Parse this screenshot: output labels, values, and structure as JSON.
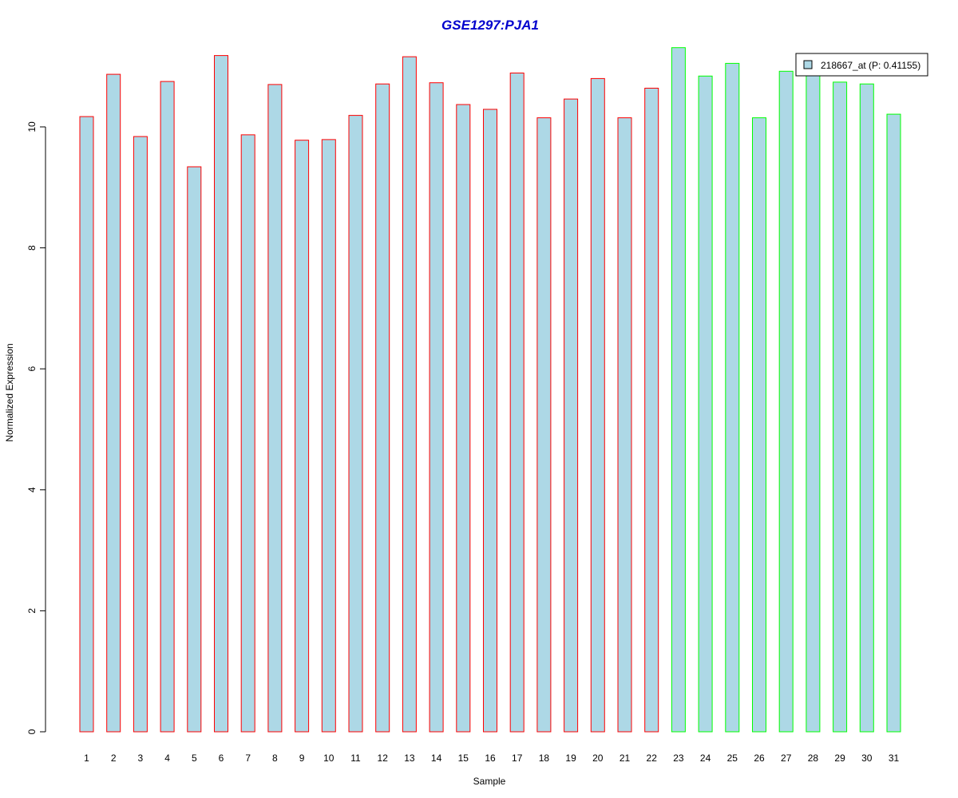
{
  "chart_data": {
    "type": "bar",
    "title": "GSE1297:PJA1",
    "xlabel": "Sample",
    "ylabel": "Normalized Expression",
    "categories": [
      "1",
      "2",
      "3",
      "4",
      "5",
      "6",
      "7",
      "8",
      "9",
      "10",
      "11",
      "12",
      "13",
      "14",
      "15",
      "16",
      "17",
      "18",
      "19",
      "20",
      "21",
      "22",
      "23",
      "24",
      "25",
      "26",
      "27",
      "28",
      "29",
      "30",
      "31"
    ],
    "values": [
      10.17,
      10.87,
      9.84,
      10.75,
      9.34,
      11.18,
      9.87,
      10.7,
      9.78,
      9.79,
      10.19,
      10.71,
      11.16,
      10.73,
      10.37,
      10.29,
      10.89,
      10.15,
      10.46,
      10.8,
      10.15,
      10.64,
      11.31,
      10.84,
      11.05,
      10.15,
      10.92,
      10.86,
      10.74,
      10.71,
      10.21
    ],
    "groups": [
      "red",
      "red",
      "red",
      "red",
      "red",
      "red",
      "red",
      "red",
      "red",
      "red",
      "red",
      "red",
      "red",
      "red",
      "red",
      "red",
      "red",
      "red",
      "red",
      "red",
      "red",
      "red",
      "green",
      "green",
      "green",
      "green",
      "green",
      "green",
      "green",
      "green",
      "green"
    ],
    "ylim": [
      0,
      11.3
    ],
    "yticks": [
      "0",
      "2",
      "4",
      "6",
      "8",
      "10"
    ],
    "legend": {
      "label": "218667_at (P: 0.41155)",
      "position": "top-right"
    },
    "colors": {
      "fill": "#add8e6",
      "red": "#ff0000",
      "green": "#00ff00",
      "title": "#0000cd"
    },
    "grid": false
  }
}
